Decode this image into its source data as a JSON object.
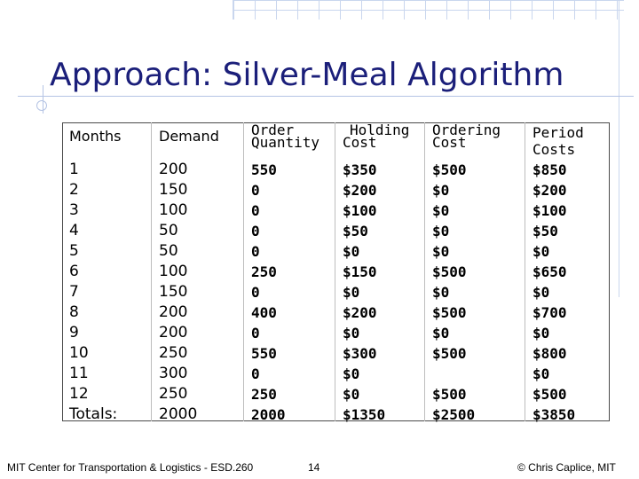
{
  "title": "Approach: Silver-Meal Algorithm",
  "table": {
    "headers": {
      "months": "Months",
      "demand": "Demand",
      "order_line1": "Order",
      "order_line2": "Quantity",
      "holding_line1": "Holding",
      "holding_line2": "Cost",
      "ordering_line1": "Ordering",
      "ordering_line2": "Cost",
      "period_line1": "Period",
      "period_line2": "Costs"
    },
    "months": [
      "1",
      "2",
      "3",
      "4",
      "5",
      "6",
      "7",
      "8",
      "9",
      "10",
      "11",
      "12",
      "Totals:"
    ],
    "demand": [
      "200",
      "150",
      "100",
      "50",
      "50",
      "100",
      "150",
      "200",
      "200",
      "250",
      "300",
      "250",
      "2000"
    ],
    "order_quantity": [
      "550",
      "0",
      "0",
      "0",
      "0",
      "250",
      "0",
      "400",
      "0",
      "550",
      "0",
      "250",
      "2000"
    ],
    "holding_cost": [
      "$350",
      "$200",
      "$100",
      "$50",
      "$0",
      "$150",
      "$0",
      "$200",
      "$0",
      "$300",
      "$0",
      "$0",
      "$1350"
    ],
    "ordering_cost": [
      "$500",
      "$0",
      "$0",
      "$0",
      "$0",
      "$500",
      "$0",
      "$500",
      "$0",
      "$500",
      "",
      "$500",
      "$2500"
    ],
    "period_costs": [
      "$850",
      "$200",
      "$100",
      "$50",
      "$0",
      "$650",
      "$0",
      "$700",
      "$0",
      "$800",
      "$0",
      "$500",
      "$3850"
    ]
  },
  "footer": {
    "left": "MIT Center for Transportation & Logistics - ESD.260",
    "page": "14",
    "right": "© Chris Caplice, MIT"
  }
}
